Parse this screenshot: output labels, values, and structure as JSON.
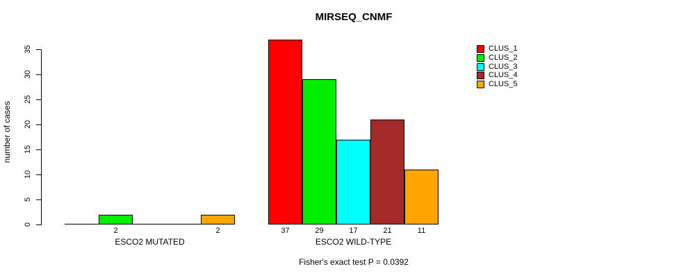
{
  "chart_data": {
    "type": "bar",
    "title": "MIRSEQ_CNMF",
    "ylabel": "number of cases",
    "ylim": [
      0,
      35
    ],
    "yticks": [
      0,
      5,
      10,
      15,
      20,
      25,
      30,
      35
    ],
    "categories": [
      "ESCO2 MUTATED",
      "ESCO2 WILD-TYPE"
    ],
    "series": [
      {
        "name": "CLUS_1",
        "color": "#FF0000",
        "values": [
          0,
          37
        ]
      },
      {
        "name": "CLUS_2",
        "color": "#00EE00",
        "values": [
          2,
          29
        ]
      },
      {
        "name": "CLUS_3",
        "color": "#00FFFF",
        "values": [
          0,
          17
        ]
      },
      {
        "name": "CLUS_4",
        "color": "#A52A2A",
        "values": [
          0,
          21
        ]
      },
      {
        "name": "CLUS_5",
        "color": "#FFA500",
        "values": [
          2,
          11
        ]
      }
    ],
    "bar_value_labels": [
      [
        null,
        "2",
        null,
        null,
        "2"
      ],
      [
        "37",
        "29",
        "17",
        "21",
        "11"
      ]
    ],
    "annotation": "Fisher's exact test P = 0.0392",
    "legend_position": "right",
    "grid": false,
    "background_color": "#FFFFFF",
    "axis_color": "#000000"
  }
}
